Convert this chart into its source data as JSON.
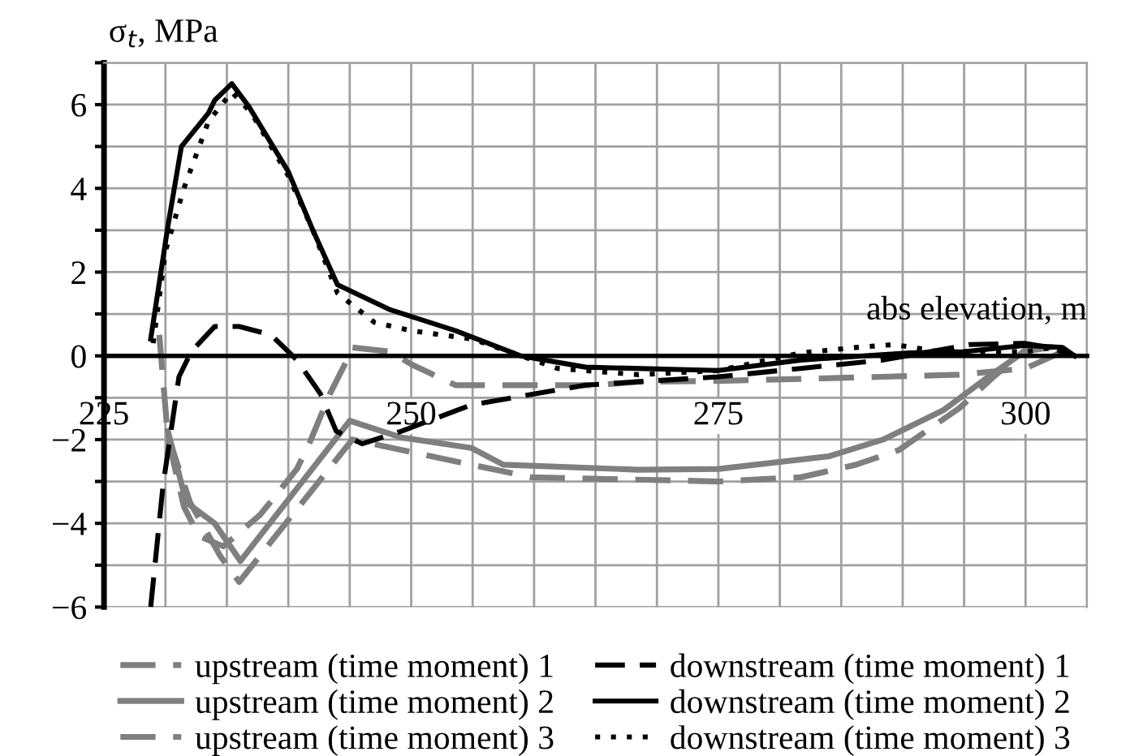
{
  "chart_data": {
    "type": "line",
    "xlabel": "abs elevation, m",
    "ylabel": "σ$_{t}$, MPa",
    "xlim": [
      225,
      305
    ],
    "ylim": [
      -6,
      7
    ],
    "xticks": [
      225,
      {
        "value": 230,
        "label": null
      },
      {
        "value": 235,
        "label": null
      },
      {
        "value": 240,
        "label": null
      },
      {
        "value": 245,
        "label": null
      },
      250,
      {
        "value": 255,
        "label": null
      },
      {
        "value": 260,
        "label": null
      },
      {
        "value": 265,
        "label": null
      },
      {
        "value": 270,
        "label": null
      },
      275,
      {
        "value": 280,
        "label": null
      },
      {
        "value": 285,
        "label": null
      },
      {
        "value": 290,
        "label": null
      },
      {
        "value": 295,
        "label": null
      },
      300,
      {
        "value": 305,
        "label": null
      }
    ],
    "yticks": [
      {
        "value": -6,
        "label": "−6"
      },
      {
        "value": -5,
        "label": null
      },
      {
        "value": -4,
        "label": "−4"
      },
      {
        "value": -3,
        "label": null
      },
      {
        "value": -2,
        "label": "−2"
      },
      {
        "value": -1,
        "label": null
      },
      0,
      {
        "value": 1,
        "label": null
      },
      2,
      {
        "value": 3,
        "label": null
      },
      4,
      {
        "value": 5,
        "label": null
      },
      6,
      {
        "value": 7,
        "label": null
      }
    ],
    "grid": true,
    "legend": "bottom",
    "series": [
      {
        "name": "upstream (time moment) 1",
        "color": "#7f7f7f",
        "line_style": "dashed",
        "x": [
          229.5,
          230.2,
          231.5,
          232.7,
          234.7,
          237.7,
          240.7,
          241.7,
          243.4,
          244.6,
          245.2,
          248.3,
          250,
          253.6,
          258,
          265,
          268.5,
          275,
          281.7,
          288.4,
          294.6,
          300,
          303
        ],
        "values": [
          0.5,
          -1.95,
          -3.6,
          -4.3,
          -4.55,
          -3.8,
          -2.7,
          -2.1,
          -0.9,
          -0.2,
          0.2,
          0.1,
          -0.2,
          -0.7,
          -0.7,
          -0.7,
          -0.62,
          -0.6,
          -0.55,
          -0.5,
          -0.45,
          -0.3,
          0.1
        ]
      },
      {
        "name": "upstream (time moment) 2",
        "color": "#7f7f7f",
        "line_style": "solid",
        "x": [
          230.2,
          231.7,
          234,
          236.1,
          245,
          249.2,
          254.9,
          257.5,
          268.5,
          275,
          284,
          288.4,
          293.3,
          297.2,
          299.9,
          302
        ],
        "values": [
          -1.8,
          -3.5,
          -4.0,
          -4.9,
          -1.55,
          -1.95,
          -2.2,
          -2.6,
          -2.72,
          -2.7,
          -2.4,
          -2.0,
          -1.3,
          -0.45,
          0.1,
          0.2
        ]
      },
      {
        "name": "upstream (time moment) 3",
        "color": "#7f7f7f",
        "line_style": "dashed",
        "x": [
          230.2,
          232,
          234.5,
          236,
          245.2,
          254.9,
          259.8,
          275,
          281.7,
          286.2,
          289.7,
          294.6,
          297.6,
          300,
          302
        ],
        "values": [
          -1.9,
          -3.5,
          -4.8,
          -5.4,
          -2.0,
          -2.6,
          -2.9,
          -3.0,
          -2.9,
          -2.6,
          -2.25,
          -1.25,
          -0.45,
          0.15,
          0.2
        ]
      },
      {
        "name": "downstream (time moment) 1",
        "color": "#000000",
        "line_style": "dashed",
        "x": [
          228.8,
          229.8,
          231.1,
          232.1,
          234,
          236,
          238.6,
          240.7,
          242.6,
          243.9,
          246,
          249.2,
          254.9,
          264.2,
          275,
          281.7,
          288.4,
          295.5,
          299.9,
          301.9,
          304
        ],
        "values": [
          -6,
          -3.1,
          -0.5,
          0.1,
          0.7,
          0.7,
          0.5,
          -0.1,
          -0.9,
          -1.8,
          -2.1,
          -1.8,
          -1.17,
          -0.7,
          -0.5,
          -0.3,
          -0.1,
          0.27,
          0.3,
          0.2,
          0
        ]
      },
      {
        "name": "downstream (time moment) 2",
        "color": "#000000",
        "line_style": "solid",
        "x": [
          228.8,
          230.2,
          231.3,
          233.5,
          234,
          235.4,
          236.8,
          240,
          242,
          244,
          248.3,
          253.6,
          258.9,
          264.2,
          275,
          281.7,
          290.6,
          295,
          300,
          303,
          304
        ],
        "values": [
          0.4,
          3.1,
          5.0,
          5.8,
          6.1,
          6.5,
          5.95,
          4.4,
          3.0,
          1.7,
          1.1,
          0.6,
          0.0,
          -0.27,
          -0.35,
          -0.1,
          0.07,
          0.1,
          0.25,
          0.2,
          0
        ]
      },
      {
        "name": "downstream (time moment) 3",
        "color": "#000000",
        "line_style": "dotted",
        "x": [
          229,
          230,
          231.5,
          233.5,
          235.4,
          237,
          240,
          242,
          244,
          247,
          250,
          255,
          261.9,
          268.5,
          275,
          281.7,
          286.2,
          289.3,
          293,
          300,
          302.2,
          304
        ],
        "values": [
          0.3,
          2.5,
          4.0,
          5.6,
          6.3,
          5.8,
          4.3,
          3.0,
          1.5,
          0.8,
          0.6,
          0.4,
          -0.3,
          -0.45,
          -0.35,
          0.07,
          0.2,
          0.27,
          0.1,
          0.1,
          0.2,
          0
        ]
      }
    ]
  }
}
